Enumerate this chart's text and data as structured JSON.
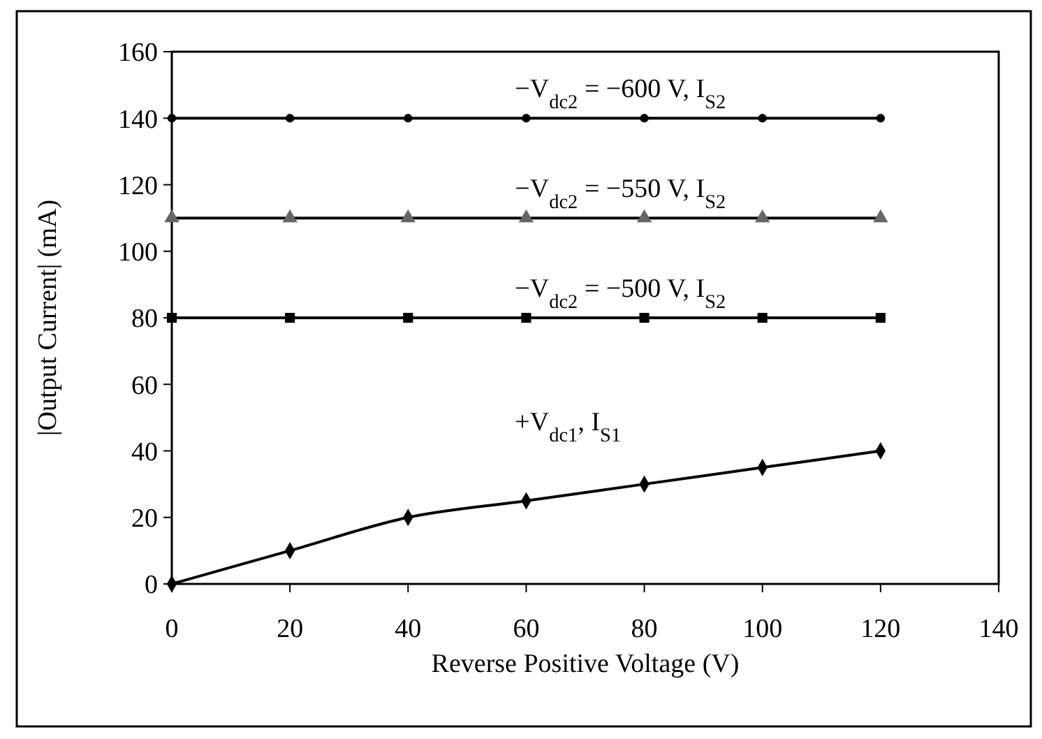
{
  "chart_data": {
    "type": "line",
    "xlabel": "Reverse Positive Voltage (V)",
    "ylabel": "|Output Current| (mA)",
    "x": [
      0,
      20,
      40,
      60,
      80,
      100,
      120
    ],
    "xlim": [
      0,
      140
    ],
    "xticks": [
      0,
      20,
      40,
      60,
      80,
      100,
      120,
      140
    ],
    "ylim": [
      0,
      160
    ],
    "yticks": [
      0,
      20,
      40,
      60,
      80,
      100,
      120,
      140,
      160
    ],
    "grid": false,
    "legend": false,
    "line_style": "solid",
    "series": [
      {
        "name": "−V$_{dc2}$ = −600 V, I$_{S2}$",
        "color": "#000000",
        "marker": "circle",
        "values": [
          140,
          140,
          140,
          140,
          140,
          140,
          140
        ]
      },
      {
        "name": "−V$_{dc2}$ = −550 V, I$_{S2}$",
        "color": "#666666",
        "marker": "triangle",
        "values": [
          110,
          110,
          110,
          110,
          110,
          110,
          110
        ]
      },
      {
        "name": "−V$_{dc2}$ = −500 V, I$_{S2}$",
        "color": "#000000",
        "marker": "square",
        "values": [
          80,
          80,
          80,
          80,
          80,
          80,
          80
        ]
      },
      {
        "name": "+V$_{dc1}$, I$_{S1}$",
        "color": "#000000",
        "marker": "diamond",
        "values": [
          0,
          10,
          20,
          25,
          30,
          35,
          40
        ]
      }
    ]
  }
}
